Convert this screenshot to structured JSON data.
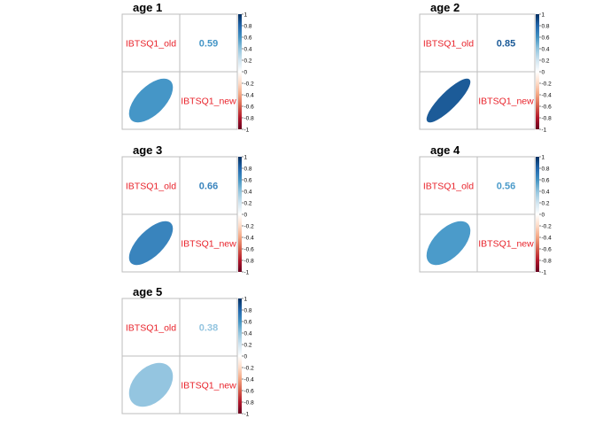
{
  "chart_data": [
    {
      "type": "heatmap",
      "title": "age 1",
      "variables": [
        "IBTSQ1_old",
        "IBTSQ1_new"
      ],
      "correlation": 0.59,
      "value_label": "0.59",
      "color": "#4596c7",
      "colorbar": {
        "range": [
          -1,
          1
        ],
        "tick_labels": [
          "1",
          "0.8",
          "0.6",
          "0.4",
          "0.2",
          "0",
          "-0.2",
          "-0.4",
          "-0.6",
          "-0.8",
          "-1"
        ]
      }
    },
    {
      "type": "heatmap",
      "title": "age 2",
      "variables": [
        "IBTSQ1_old",
        "IBTSQ1_new"
      ],
      "correlation": 0.85,
      "value_label": "0.85",
      "color": "#1c5b98",
      "colorbar": {
        "range": [
          -1,
          1
        ],
        "tick_labels": [
          "1",
          "0.8",
          "0.6",
          "0.4",
          "0.2",
          "0",
          "-0.2",
          "-0.4",
          "-0.6",
          "-0.8",
          "-1"
        ]
      }
    },
    {
      "type": "heatmap",
      "title": "age 3",
      "variables": [
        "IBTSQ1_old",
        "IBTSQ1_new"
      ],
      "correlation": 0.66,
      "value_label": "0.66",
      "color": "#3984bd",
      "colorbar": {
        "range": [
          -1,
          1
        ],
        "tick_labels": [
          "1",
          "0.8",
          "0.6",
          "0.4",
          "0.2",
          "0",
          "-0.2",
          "-0.4",
          "-0.6",
          "-0.8",
          "-1"
        ]
      }
    },
    {
      "type": "heatmap",
      "title": "age 4",
      "variables": [
        "IBTSQ1_old",
        "IBTSQ1_new"
      ],
      "correlation": 0.56,
      "value_label": "0.56",
      "color": "#4b9bca",
      "colorbar": {
        "range": [
          -1,
          1
        ],
        "tick_labels": [
          "1",
          "0.8",
          "0.6",
          "0.4",
          "0.2",
          "0",
          "-0.2",
          "-0.4",
          "-0.6",
          "-0.8",
          "-1"
        ]
      }
    },
    {
      "type": "heatmap",
      "title": "age 5",
      "variables": [
        "IBTSQ1_old",
        "IBTSQ1_new"
      ],
      "correlation": 0.38,
      "value_label": "0.38",
      "color": "#94c5e0",
      "colorbar": {
        "range": [
          -1,
          1
        ],
        "tick_labels": [
          "1",
          "0.8",
          "0.6",
          "0.4",
          "0.2",
          "0",
          "-0.2",
          "-0.4",
          "-0.6",
          "-0.8",
          "-1"
        ]
      }
    }
  ]
}
